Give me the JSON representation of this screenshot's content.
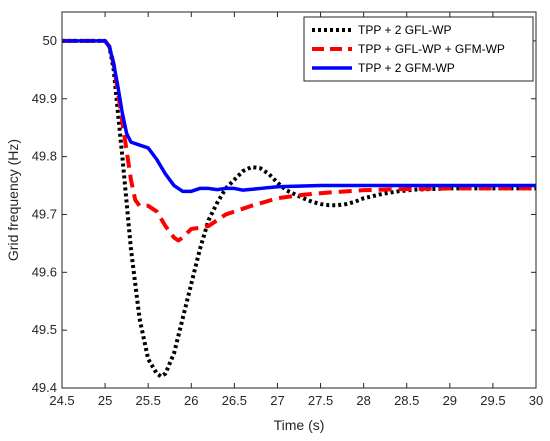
{
  "chart_data": {
    "type": "line",
    "title": "",
    "xlabel": "Time (s)",
    "ylabel": "Grid frequency (Hz)",
    "xlim": [
      24.5,
      30
    ],
    "ylim": [
      49.4,
      50.05
    ],
    "xticks": [
      "24.5",
      "25",
      "25.5",
      "26",
      "26.5",
      "27",
      "27.5",
      "28",
      "28.5",
      "29",
      "29.5",
      "30"
    ],
    "yticks": [
      "49.4",
      "49.5",
      "49.6",
      "49.7",
      "49.8",
      "49.9",
      "50"
    ],
    "legend_position": "top-right",
    "grid": false,
    "series": [
      {
        "name": "TPP + 2 GFL-WP",
        "color": "#000000",
        "style": "dotted",
        "x": [
          24.5,
          25.0,
          25.05,
          25.1,
          25.2,
          25.3,
          25.4,
          25.5,
          25.6,
          25.65,
          25.7,
          25.8,
          25.9,
          26.0,
          26.1,
          26.2,
          26.3,
          26.4,
          26.5,
          26.6,
          26.7,
          26.8,
          26.9,
          27.0,
          27.1,
          27.2,
          27.3,
          27.4,
          27.5,
          27.6,
          27.7,
          27.8,
          27.9,
          28.0,
          28.2,
          28.4,
          28.6,
          29.0,
          29.5,
          30.0
        ],
        "y": [
          50.0,
          50.0,
          49.99,
          49.95,
          49.8,
          49.64,
          49.52,
          49.45,
          49.425,
          49.42,
          49.425,
          49.46,
          49.52,
          49.58,
          49.64,
          49.69,
          49.72,
          49.745,
          49.76,
          49.775,
          49.782,
          49.78,
          49.77,
          49.755,
          49.742,
          49.735,
          49.728,
          49.722,
          49.718,
          49.716,
          49.716,
          49.718,
          49.722,
          49.728,
          49.735,
          49.74,
          49.743,
          49.745,
          49.745,
          49.745
        ]
      },
      {
        "name": "TPP + GFL-WP + GFM-WP",
        "color": "#ff0000",
        "style": "dashed",
        "x": [
          24.5,
          25.0,
          25.05,
          25.1,
          25.2,
          25.3,
          25.35,
          25.4,
          25.5,
          25.6,
          25.7,
          25.8,
          25.85,
          25.9,
          26.0,
          26.1,
          26.2,
          26.3,
          26.4,
          26.5,
          26.7,
          27.0,
          27.3,
          27.6,
          28.0,
          28.5,
          29.0,
          29.5,
          30.0
        ],
        "y": [
          50.0,
          50.0,
          49.99,
          49.96,
          49.86,
          49.76,
          49.725,
          49.715,
          49.715,
          49.705,
          49.68,
          49.66,
          49.655,
          49.66,
          49.675,
          49.677,
          49.68,
          49.69,
          49.7,
          49.705,
          49.715,
          49.728,
          49.734,
          49.738,
          49.742,
          49.744,
          49.745,
          49.745,
          49.745
        ]
      },
      {
        "name": "TPP + 2 GFM-WP",
        "color": "#0000ff",
        "style": "solid",
        "x": [
          24.5,
          25.0,
          25.05,
          25.1,
          25.15,
          25.2,
          25.25,
          25.3,
          25.4,
          25.5,
          25.6,
          25.7,
          25.8,
          25.9,
          26.0,
          26.1,
          26.2,
          26.3,
          26.4,
          26.5,
          26.6,
          26.8,
          27.0,
          27.5,
          28.0,
          29.0,
          30.0
        ],
        "y": [
          50.0,
          50.0,
          49.99,
          49.96,
          49.92,
          49.875,
          49.84,
          49.825,
          49.82,
          49.815,
          49.795,
          49.77,
          49.75,
          49.74,
          49.74,
          49.745,
          49.745,
          49.743,
          49.745,
          49.745,
          49.742,
          49.745,
          49.748,
          49.75,
          49.75,
          49.75,
          49.75
        ]
      }
    ]
  }
}
